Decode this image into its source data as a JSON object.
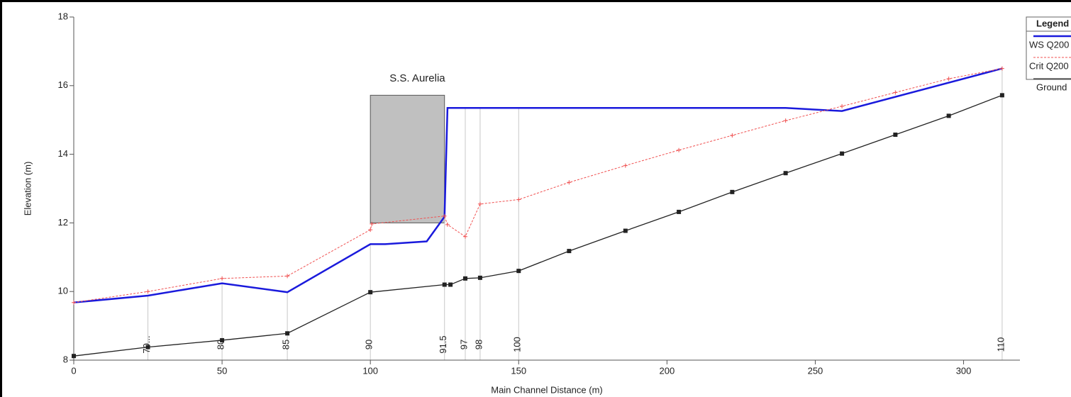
{
  "chart_data": {
    "type": "line",
    "xlabel": "Main Channel Distance (m)",
    "ylabel": "Elevation (m)",
    "xlim": [
      0,
      319
    ],
    "xticks": [
      0,
      50,
      100,
      150,
      200,
      250,
      300
    ],
    "ylim": [
      8,
      18
    ],
    "yticks": [
      8,
      10,
      12,
      14,
      16,
      18
    ],
    "legend_title": "Legend",
    "legend": "upper right",
    "series": [
      {
        "name": "WS  Q200",
        "color": "#1a1adc",
        "style": "solid",
        "marker": "none",
        "x": [
          0,
          25,
          50,
          72,
          100,
          105,
          119,
          125,
          126,
          240,
          259,
          313
        ],
        "values": [
          9.68,
          9.88,
          10.24,
          9.98,
          11.38,
          11.38,
          11.46,
          12.18,
          15.35,
          15.35,
          15.26,
          16.5
        ]
      },
      {
        "name": "Crit  Q200",
        "color": "#f05050",
        "style": "dashed",
        "marker": "plus",
        "x": [
          0,
          25,
          50,
          72,
          100,
          100.5,
          125,
          126,
          132,
          137,
          150,
          167,
          186,
          204,
          222,
          240,
          259,
          277,
          295,
          313
        ],
        "values": [
          9.68,
          10.0,
          10.38,
          10.45,
          11.8,
          11.97,
          12.2,
          11.95,
          11.6,
          12.55,
          12.68,
          13.18,
          13.67,
          14.12,
          14.55,
          14.98,
          15.4,
          15.8,
          16.2,
          16.5
        ]
      },
      {
        "name": "Ground",
        "color": "#222222",
        "style": "solid",
        "marker": "square",
        "x": [
          0,
          25,
          50,
          72,
          100,
          125,
          127,
          132,
          137,
          150,
          167,
          186,
          204,
          222,
          240,
          259,
          277,
          295,
          313
        ],
        "values": [
          8.12,
          8.38,
          8.58,
          8.78,
          9.98,
          10.2,
          10.2,
          10.38,
          10.4,
          10.6,
          11.18,
          11.77,
          12.32,
          12.9,
          13.45,
          14.02,
          14.57,
          15.12,
          15.72
        ]
      }
    ],
    "bridge": {
      "label": "S.S. Aurelia",
      "x": [
        100,
        125
      ],
      "values": [
        12,
        15.72
      ],
      "color": "#c0c0c0"
    },
    "stations": {
      "labels": [
        "70...",
        "80",
        "85",
        "90",
        "91.5",
        "97",
        "98",
        "100",
        "110"
      ],
      "x": [
        25,
        50,
        72,
        100,
        125,
        132,
        137,
        150,
        313
      ]
    }
  }
}
